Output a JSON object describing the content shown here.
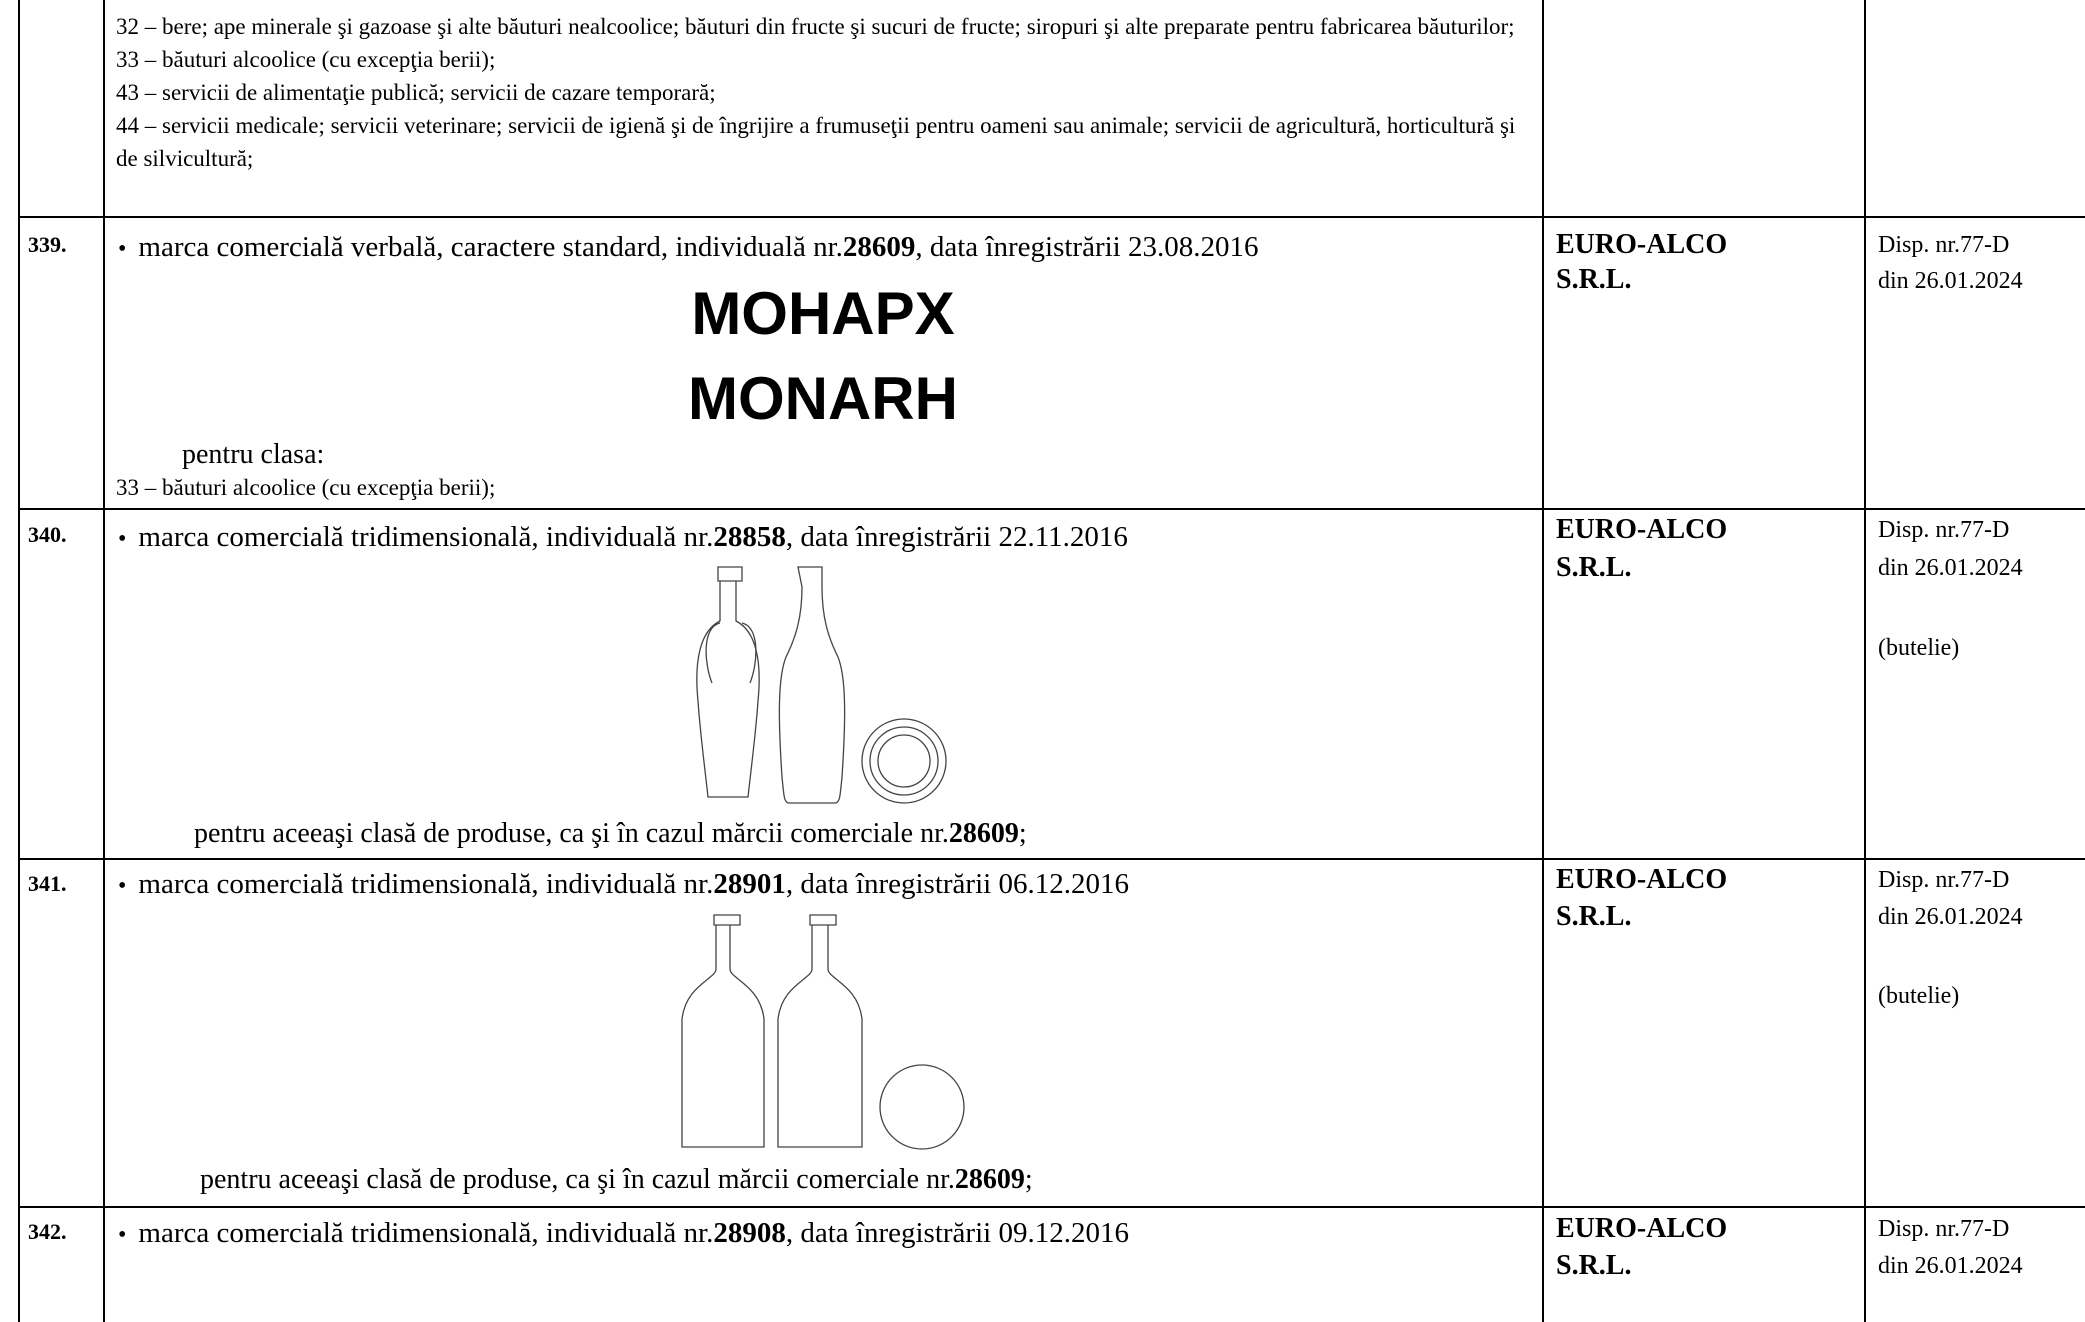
{
  "table": {
    "rows": [
      {
        "classes": [
          "32 – bere; ape minerale şi gazoase şi alte băuturi nealcoolice; băuturi din fructe şi sucuri de fructe; siropuri şi alte preparate pentru fabricarea băuturilor;",
          "33 – băuturi alcoolice (cu excepţia berii);",
          "43 – servicii de alimentaţie publică; servicii de cazare temporară;",
          "44 – servicii medicale; servicii veterinare; servicii de igienă şi de îngrijire a frumuseţii pentru oameni sau animale; servicii de agricultură, horticultură şi de silvicultură;"
        ]
      },
      {
        "number": "339.",
        "mark": {
          "prefix": "marca comercială verbală, caractere standard, individuală nr.",
          "reg_no": "28609",
          "suffix": ", data înregistrării 23.08.2016"
        },
        "word_mark": [
          "MOHAPX",
          "MONARH"
        ],
        "class_heading": "pentru clasa:",
        "classes": [
          "33 – băuturi alcoolice (cu excepţia berii);"
        ],
        "owner": [
          "EURO-ALCO",
          "S.R.L."
        ],
        "decision": [
          "Disp. nr.77-D",
          "din 26.01.2024"
        ]
      },
      {
        "number": "340.",
        "mark": {
          "prefix": "marca comercială tridimensională, individuală nr.",
          "reg_no": "28858",
          "suffix": ", data înregistrării 22.11.2016"
        },
        "note": {
          "prefix": "pentru aceeaşi clasă de produse, ca şi în cazul mărcii comerciale nr.",
          "ref_no": "28609",
          "suffix": ";"
        },
        "owner": [
          "EURO-ALCO",
          "S.R.L."
        ],
        "decision": [
          "Disp. nr.77-D",
          "din 26.01.2024",
          "(butelie)"
        ]
      },
      {
        "number": "341.",
        "mark": {
          "prefix": "marca comercială tridimensională, individuală nr.",
          "reg_no": "28901",
          "suffix": ", data înregistrării 06.12.2016"
        },
        "note": {
          "prefix": "pentru aceeaşi clasă de produse, ca şi în cazul mărcii comerciale nr.",
          "ref_no": "28609",
          "suffix": ";"
        },
        "owner": [
          "EURO-ALCO",
          "S.R.L."
        ],
        "decision": [
          "Disp. nr.77-D",
          "din 26.01.2024",
          "(butelie)"
        ]
      },
      {
        "number": "342.",
        "mark": {
          "prefix": "marca comercială tridimensională, individuală nr.",
          "reg_no": "28908",
          "suffix": ", data înregistrării 09.12.2016"
        },
        "owner": [
          "EURO-ALCO",
          "S.R.L."
        ],
        "decision": [
          "Disp. nr.77-D",
          "din 26.01.2024"
        ]
      }
    ]
  }
}
